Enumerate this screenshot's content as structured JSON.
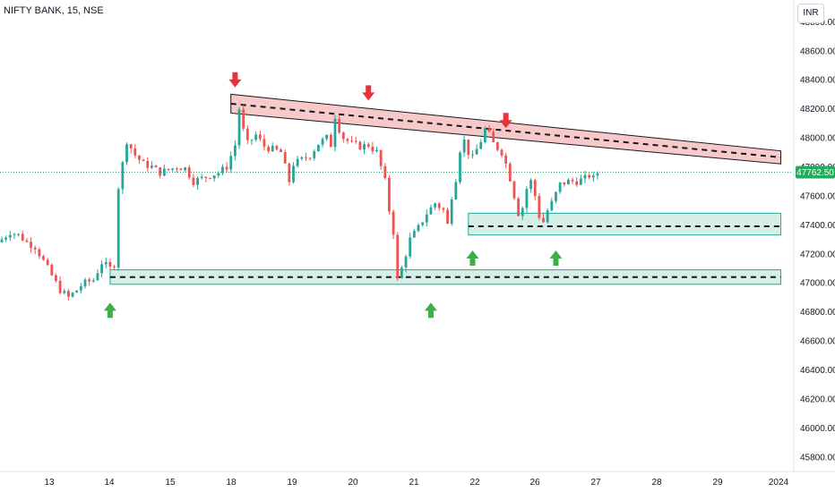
{
  "header": {
    "title": "NIFTY BANK, 15, NSE",
    "currency": "INR"
  },
  "chart_data": {
    "type": "candlestick",
    "title": "NIFTY BANK, 15, NSE",
    "ylim": [
      45700,
      48950
    ],
    "y_ticks": [
      "48800.00",
      "48600.00",
      "48400.00",
      "48200.00",
      "48000.00",
      "47800.00",
      "47600.00",
      "47400.00",
      "47200.00",
      "47000.00",
      "46800.00",
      "46600.00",
      "46400.00",
      "46200.00",
      "46000.00",
      "45800.00"
    ],
    "x_ticks": [
      "13",
      "14",
      "15",
      "18",
      "19",
      "20",
      "21",
      "22",
      "26",
      "27",
      "28",
      "29",
      "2024"
    ],
    "last_price": "47762.50",
    "last_price_value": 47762.5,
    "close_path": [
      [
        0,
        47300
      ],
      [
        2,
        47350
      ],
      [
        4,
        47330
      ],
      [
        6,
        47280
      ],
      [
        8,
        47250
      ],
      [
        10,
        47150
      ],
      [
        12,
        47050
      ],
      [
        14,
        46950
      ],
      [
        16,
        46900
      ],
      [
        18,
        46950
      ],
      [
        19,
        46980
      ],
      [
        20,
        47000
      ],
      [
        22,
        47020
      ],
      [
        23,
        47080
      ],
      [
        24,
        47140
      ],
      [
        25,
        47120
      ],
      [
        26,
        47100
      ],
      [
        27,
        47130
      ],
      [
        28,
        47660
      ],
      [
        30,
        47980
      ],
      [
        32,
        47880
      ],
      [
        34,
        47820
      ],
      [
        36,
        47800
      ],
      [
        38,
        47760
      ],
      [
        40,
        47780
      ],
      [
        42,
        47800
      ],
      [
        44,
        47790
      ],
      [
        46,
        47700
      ],
      [
        48,
        47720
      ],
      [
        50,
        47740
      ],
      [
        52,
        47760
      ],
      [
        54,
        47800
      ],
      [
        56,
        47950
      ],
      [
        57,
        48200
      ],
      [
        58,
        48050
      ],
      [
        59,
        47960
      ],
      [
        61,
        48020
      ],
      [
        63,
        47940
      ],
      [
        65,
        47920
      ],
      [
        67,
        47900
      ],
      [
        68,
        47800
      ],
      [
        69,
        47700
      ],
      [
        70,
        47820
      ],
      [
        72,
        47850
      ],
      [
        74,
        47880
      ],
      [
        76,
        47960
      ],
      [
        78,
        48000
      ],
      [
        79,
        47950
      ],
      [
        80,
        48150
      ],
      [
        81,
        48060
      ],
      [
        82,
        48000
      ],
      [
        84,
        47960
      ],
      [
        86,
        47940
      ],
      [
        88,
        47950
      ],
      [
        90,
        47900
      ],
      [
        91,
        47800
      ],
      [
        92,
        47700
      ],
      [
        93,
        47500
      ],
      [
        94,
        47350
      ],
      [
        95,
        47020
      ],
      [
        96,
        47100
      ],
      [
        97,
        47200
      ],
      [
        98,
        47300
      ],
      [
        100,
        47380
      ],
      [
        102,
        47480
      ],
      [
        104,
        47550
      ],
      [
        106,
        47500
      ],
      [
        107,
        47400
      ],
      [
        108,
        47600
      ],
      [
        109,
        47720
      ],
      [
        110,
        47920
      ],
      [
        111,
        47980
      ],
      [
        112,
        47900
      ],
      [
        113,
        47860
      ],
      [
        114,
        47920
      ],
      [
        115,
        47980
      ],
      [
        116,
        48060
      ],
      [
        117,
        48020
      ],
      [
        118,
        47960
      ],
      [
        120,
        47900
      ],
      [
        121,
        47820
      ],
      [
        122,
        47720
      ],
      [
        123,
        47600
      ],
      [
        124,
        47480
      ],
      [
        125,
        47520
      ],
      [
        126,
        47650
      ],
      [
        127,
        47700
      ],
      [
        128,
        47600
      ],
      [
        129,
        47460
      ],
      [
        130,
        47420
      ],
      [
        131,
        47500
      ],
      [
        132,
        47550
      ],
      [
        134,
        47680
      ],
      [
        136,
        47700
      ],
      [
        138,
        47700
      ],
      [
        140,
        47720
      ],
      [
        141,
        47740
      ],
      [
        142,
        47720
      ],
      [
        143,
        47760
      ]
    ],
    "resistance_zone": {
      "from_index": 55,
      "to_index": 187,
      "upper": [
        48300,
        47910
      ],
      "lower": [
        48170,
        47820
      ],
      "mid": [
        48235,
        47865
      ]
    },
    "support_zones": [
      {
        "from_index": 26,
        "to_index": 187,
        "upper": 47090,
        "lower": 46990,
        "mid": 47040
      },
      {
        "from_index": 112,
        "to_index": 187,
        "upper": 47480,
        "lower": 47330,
        "mid": 47390
      }
    ],
    "down_arrows": [
      [
        56,
        48390
      ],
      [
        88,
        48300
      ],
      [
        121,
        48110
      ]
    ],
    "up_arrows": [
      [
        26,
        46820
      ],
      [
        103,
        46820
      ],
      [
        113,
        47180
      ],
      [
        133,
        47180
      ]
    ],
    "grid": false,
    "colors": {
      "up": "#26a69a",
      "down": "#ef5350",
      "resistance_fill": "#f8c9c9",
      "support_fill": "#d6efe6",
      "support_border": "#26a69a",
      "arrow_down": "#e8323c",
      "arrow_up": "#3fae49",
      "last_price_bg": "#22ab5b"
    }
  }
}
